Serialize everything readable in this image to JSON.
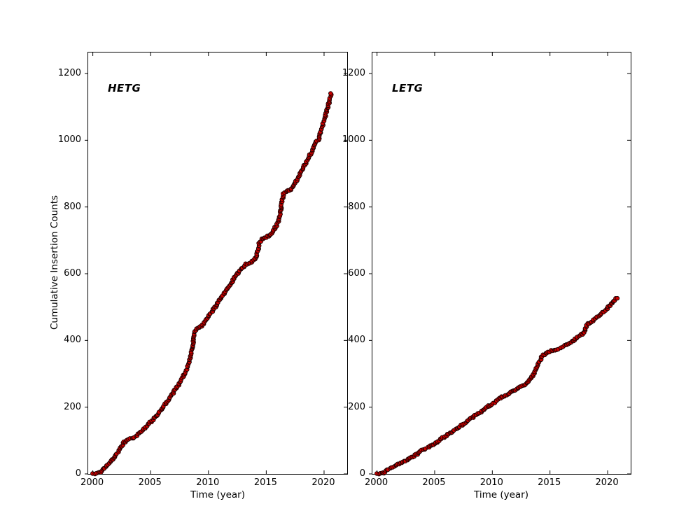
{
  "figure": {
    "background": "#ffffff",
    "axis_color": "#000000",
    "marker_color": "#cc0000",
    "marker_edge_color": "#1a0000",
    "tick_length": 5
  },
  "chart_data": [
    {
      "type": "scatter",
      "title": "HETG",
      "xlabel": "Time (year)",
      "ylabel": "Cumulative Insertion Counts",
      "xlim": [
        1999.6,
        2022.0
      ],
      "ylim": [
        0,
        1263
      ],
      "xticks": [
        2000,
        2005,
        2010,
        2015,
        2020
      ],
      "yticks": [
        0,
        200,
        400,
        600,
        800,
        1000,
        1200
      ],
      "grid": false,
      "legend": "none",
      "series": [
        {
          "name": "HETG cumulative insertion counts",
          "marker": "circle",
          "points": [
            [
              2000.0,
              0
            ],
            [
              2000.3,
              1
            ],
            [
              2000.6,
              4
            ],
            [
              2000.9,
              12
            ],
            [
              2001.2,
              24
            ],
            [
              2001.5,
              35
            ],
            [
              2001.8,
              47
            ],
            [
              2002.1,
              62
            ],
            [
              2002.4,
              78
            ],
            [
              2002.7,
              95
            ],
            [
              2003.0,
              101
            ],
            [
              2003.4,
              106
            ],
            [
              2003.7,
              112
            ],
            [
              2004.0,
              122
            ],
            [
              2004.4,
              135
            ],
            [
              2004.8,
              148
            ],
            [
              2005.2,
              163
            ],
            [
              2005.6,
              178
            ],
            [
              2006.0,
              197
            ],
            [
              2006.4,
              216
            ],
            [
              2006.8,
              236
            ],
            [
              2007.2,
              256
            ],
            [
              2007.6,
              278
            ],
            [
              2008.0,
              302
            ],
            [
              2008.3,
              332
            ],
            [
              2008.5,
              362
            ],
            [
              2008.65,
              382
            ],
            [
              2008.8,
              425
            ],
            [
              2009.0,
              436
            ],
            [
              2009.4,
              444
            ],
            [
              2009.7,
              458
            ],
            [
              2010.0,
              472
            ],
            [
              2010.4,
              492
            ],
            [
              2010.8,
              512
            ],
            [
              2011.2,
              533
            ],
            [
              2011.6,
              553
            ],
            [
              2012.0,
              574
            ],
            [
              2012.4,
              597
            ],
            [
              2012.8,
              612
            ],
            [
              2013.2,
              628
            ],
            [
              2013.6,
              634
            ],
            [
              2014.0,
              642
            ],
            [
              2014.2,
              656
            ],
            [
              2014.4,
              690
            ],
            [
              2014.6,
              703
            ],
            [
              2015.0,
              710
            ],
            [
              2015.3,
              716
            ],
            [
              2015.6,
              728
            ],
            [
              2015.9,
              745
            ],
            [
              2016.1,
              762
            ],
            [
              2016.3,
              800
            ],
            [
              2016.5,
              840
            ],
            [
              2016.8,
              848
            ],
            [
              2017.1,
              852
            ],
            [
              2017.4,
              865
            ],
            [
              2017.7,
              884
            ],
            [
              2018.0,
              904
            ],
            [
              2018.3,
              924
            ],
            [
              2018.6,
              944
            ],
            [
              2018.9,
              962
            ],
            [
              2019.1,
              980
            ],
            [
              2019.25,
              995
            ],
            [
              2019.5,
              1001
            ],
            [
              2019.7,
              1022
            ],
            [
              2019.9,
              1048
            ],
            [
              2020.1,
              1072
            ],
            [
              2020.3,
              1096
            ],
            [
              2020.45,
              1118
            ],
            [
              2020.6,
              1140
            ]
          ]
        }
      ]
    },
    {
      "type": "scatter",
      "title": "LETG",
      "xlabel": "Time (year)",
      "ylabel": "",
      "xlim": [
        1999.6,
        2022.0
      ],
      "ylim": [
        0,
        1263
      ],
      "xticks": [
        2000,
        2005,
        2010,
        2015,
        2020
      ],
      "yticks": [
        0,
        200,
        400,
        600,
        800,
        1000,
        1200
      ],
      "grid": false,
      "legend": "none",
      "series": [
        {
          "name": "LETG cumulative insertion counts",
          "marker": "circle",
          "points": [
            [
              2000.0,
              0
            ],
            [
              2000.4,
              1
            ],
            [
              2000.7,
              5
            ],
            [
              2001.0,
              14
            ],
            [
              2001.5,
              22
            ],
            [
              2002.0,
              32
            ],
            [
              2002.5,
              40
            ],
            [
              2003.0,
              50
            ],
            [
              2003.5,
              60
            ],
            [
              2004.0,
              72
            ],
            [
              2004.5,
              81
            ],
            [
              2005.0,
              91
            ],
            [
              2005.5,
              103
            ],
            [
              2006.0,
              115
            ],
            [
              2006.5,
              126
            ],
            [
              2007.0,
              138
            ],
            [
              2007.5,
              150
            ],
            [
              2008.0,
              163
            ],
            [
              2008.5,
              174
            ],
            [
              2009.0,
              186
            ],
            [
              2009.5,
              198
            ],
            [
              2010.0,
              210
            ],
            [
              2010.4,
              220
            ],
            [
              2010.7,
              228
            ],
            [
              2011.0,
              234
            ],
            [
              2011.5,
              242
            ],
            [
              2012.0,
              252
            ],
            [
              2012.4,
              262
            ],
            [
              2012.8,
              268
            ],
            [
              2013.0,
              272
            ],
            [
              2013.5,
              295
            ],
            [
              2014.0,
              330
            ],
            [
              2014.3,
              352
            ],
            [
              2014.6,
              362
            ],
            [
              2015.0,
              367
            ],
            [
              2015.5,
              372
            ],
            [
              2016.0,
              379
            ],
            [
              2016.5,
              388
            ],
            [
              2017.0,
              399
            ],
            [
              2017.4,
              410
            ],
            [
              2017.8,
              420
            ],
            [
              2018.0,
              424
            ],
            [
              2018.15,
              446
            ],
            [
              2018.5,
              455
            ],
            [
              2019.0,
              467
            ],
            [
              2019.5,
              480
            ],
            [
              2020.0,
              497
            ],
            [
              2020.3,
              509
            ],
            [
              2020.6,
              521
            ],
            [
              2020.8,
              528
            ]
          ]
        }
      ]
    }
  ]
}
